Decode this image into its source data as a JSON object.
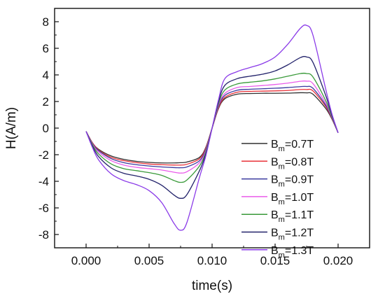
{
  "chart_data": {
    "type": "line",
    "xlabel": "time(s)",
    "ylabel": "H(A/m)",
    "xlim": [
      -0.0025,
      0.0225
    ],
    "ylim": [
      -9,
      9
    ],
    "xticks": [
      0.0,
      0.005,
      0.01,
      0.015,
      0.02
    ],
    "xtick_labels": [
      "0.000",
      "0.005",
      "0.010",
      "0.015",
      "0.020"
    ],
    "yticks": [
      -8,
      -6,
      -4,
      -2,
      0,
      2,
      4,
      6,
      8
    ],
    "ytick_labels": [
      "-8",
      "-6",
      "-4",
      "-2",
      "0",
      "2",
      "4",
      "6",
      "8"
    ],
    "grid": false,
    "legend_position": "right",
    "legend_prefix": "B",
    "legend_subscript": "m",
    "x": [
      0.0,
      0.0005,
      0.001,
      0.002,
      0.003,
      0.004,
      0.005,
      0.006,
      0.007,
      0.0075,
      0.008,
      0.009,
      0.0095,
      0.01,
      0.0105,
      0.011,
      0.012,
      0.013,
      0.014,
      0.015,
      0.016,
      0.017,
      0.0175,
      0.018,
      0.019,
      0.0195,
      0.02
    ],
    "series": [
      {
        "name": "=0.7T",
        "color": "#303030",
        "values": [
          -0.25,
          -1.1,
          -1.6,
          -2.1,
          -2.35,
          -2.5,
          -2.58,
          -2.62,
          -2.62,
          -2.6,
          -2.55,
          -2.2,
          -1.45,
          0.0,
          1.45,
          2.2,
          2.55,
          2.6,
          2.62,
          2.62,
          2.63,
          2.66,
          2.65,
          2.55,
          1.5,
          0.7,
          -0.35
        ]
      },
      {
        "name": "=0.8T",
        "color": "#e8333a",
        "values": [
          -0.25,
          -1.1,
          -1.65,
          -2.2,
          -2.45,
          -2.6,
          -2.7,
          -2.75,
          -2.78,
          -2.78,
          -2.72,
          -2.3,
          -1.5,
          0.0,
          1.5,
          2.3,
          2.7,
          2.76,
          2.78,
          2.8,
          2.83,
          2.9,
          2.9,
          2.8,
          1.65,
          0.75,
          -0.35
        ]
      },
      {
        "name": "=0.9T",
        "color": "#3a3a9e",
        "values": [
          -0.25,
          -1.15,
          -1.7,
          -2.3,
          -2.6,
          -2.75,
          -2.85,
          -2.92,
          -2.97,
          -2.98,
          -2.92,
          -2.45,
          -1.6,
          0.0,
          1.6,
          2.45,
          2.85,
          2.92,
          2.96,
          3.0,
          3.05,
          3.12,
          3.13,
          3.0,
          1.75,
          0.8,
          -0.35
        ]
      },
      {
        "name": "=1.0T",
        "color": "#ea5cea",
        "values": [
          -0.25,
          -1.2,
          -1.8,
          -2.45,
          -2.78,
          -2.95,
          -3.05,
          -3.15,
          -3.32,
          -3.38,
          -3.28,
          -2.6,
          -1.7,
          0.0,
          1.7,
          2.6,
          3.05,
          3.13,
          3.2,
          3.28,
          3.38,
          3.52,
          3.53,
          3.35,
          1.9,
          0.85,
          -0.35
        ]
      },
      {
        "name": "=1.1T",
        "color": "#3a9a3a",
        "values": [
          -0.25,
          -1.25,
          -1.95,
          -2.7,
          -3.05,
          -3.2,
          -3.35,
          -3.55,
          -3.95,
          -4.08,
          -3.9,
          -2.85,
          -1.8,
          0.0,
          1.8,
          2.85,
          3.32,
          3.45,
          3.55,
          3.7,
          3.9,
          4.1,
          4.1,
          3.85,
          2.1,
          0.9,
          -0.35
        ]
      },
      {
        "name": "=1.2T",
        "color": "#22226a",
        "values": [
          -0.25,
          -1.35,
          -2.15,
          -3.0,
          -3.4,
          -3.6,
          -3.85,
          -4.3,
          -5.05,
          -5.28,
          -5.0,
          -3.2,
          -1.95,
          0.0,
          1.95,
          3.2,
          3.72,
          3.9,
          4.05,
          4.3,
          4.75,
          5.3,
          5.35,
          4.95,
          2.5,
          1.0,
          -0.35
        ]
      },
      {
        "name": "=1.3T",
        "color": "#8a3ae8",
        "values": [
          -0.25,
          -1.45,
          -2.4,
          -3.45,
          -3.95,
          -4.25,
          -4.7,
          -5.6,
          -7.2,
          -7.68,
          -7.1,
          -3.7,
          -2.1,
          0.0,
          2.1,
          3.7,
          4.25,
          4.55,
          4.85,
          5.35,
          6.3,
          7.5,
          7.72,
          7.0,
          3.0,
          1.1,
          -0.35
        ]
      }
    ]
  }
}
